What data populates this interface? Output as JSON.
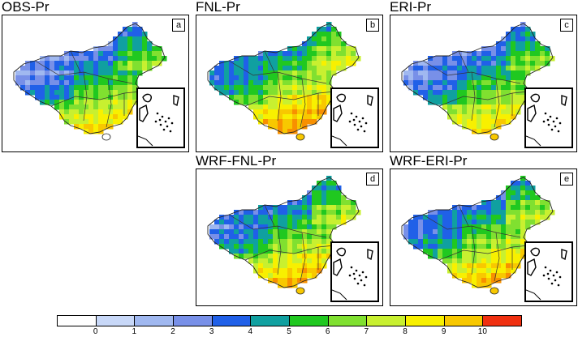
{
  "panels": [
    {
      "title": "OBS-Pr",
      "letter": "a"
    },
    {
      "title": "FNL-Pr",
      "letter": "b"
    },
    {
      "title": "ERI-Pr",
      "letter": "c"
    },
    {
      "title": "WRF-FNL-Pr",
      "letter": "d"
    },
    {
      "title": "WRF-ERI-Pr",
      "letter": "e"
    }
  ],
  "colorbar": {
    "colors": [
      "#ffffff",
      "#c8d8f8",
      "#a0b8f0",
      "#7890e8",
      "#2060e8",
      "#10a0a0",
      "#20c820",
      "#80e030",
      "#c8f030",
      "#f8f000",
      "#f8c800",
      "#f89000",
      "#f03010"
    ],
    "ticks": [
      "0",
      "1",
      "2",
      "3",
      "4",
      "5",
      "6",
      "7",
      "8",
      "9",
      "10"
    ]
  }
}
